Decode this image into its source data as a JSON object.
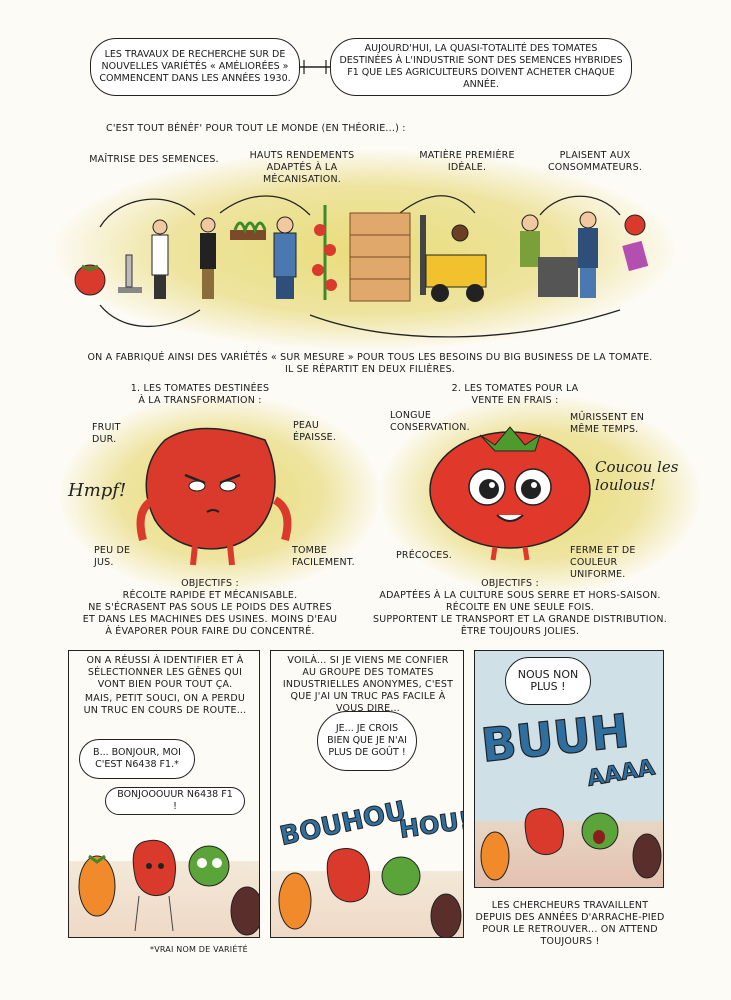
{
  "header": {
    "box_left": "LES TRAVAUX DE RECHERCHE SUR DE NOUVELLES VARIÉTÉS « AMÉLIORÉES » COMMENCENT DANS LES ANNÉES 1930.",
    "box_right": "AUJOURD'HUI, LA QUASI-TOTALITÉ DES TOMATES DESTINÉES À L'INDUSTRIE SONT DES SEMENCES HYBRIDES F1 QUE LES AGRICULTEURS DOIVENT ACHETER CHAQUE ANNÉE."
  },
  "benef_line": "C'EST TOUT BÉNÉF' POUR TOUT LE MONDE (EN THÉORIE...) :",
  "chain": {
    "label1": "MAÎTRISE DES SEMENCES.",
    "label2": "HAUTS RENDEMENTS ADAPTÉS À LA MÉCANISATION.",
    "label3": "MATIÈRE PREMIÈRE IDÉALE.",
    "label4": "PLAISENT AUX CONSOMMATEURS."
  },
  "summary_line1": "ON A FABRIQUÉ AINSI DES VARIÉTÉS « SUR MESURE » POUR TOUS LES BESOINS DU BIG BUSINESS DE LA TOMATE.",
  "summary_line2": "IL SE RÉPARTIT EN DEUX FILIÈRES.",
  "left_tomato": {
    "heading": "1. LES TOMATES DESTINÉES À LA TRANSFORMATION :",
    "fruit_dur": "FRUIT DUR.",
    "peau_epaisse": "PEAU ÉPAISSE.",
    "hmpf": "Hmpf!",
    "peu_de_jus": "PEU DE JUS.",
    "tombe": "TOMBE FACILEMENT.",
    "objectifs_title": "OBJECTIFS :",
    "objectifs_1": "RÉCOLTE RAPIDE ET MÉCANISABLE.",
    "objectifs_2": "NE S'ÉCRASENT PAS SOUS LE POIDS DES AUTRES",
    "objectifs_3": "ET DANS LES MACHINES DES USINES. MOINS D'EAU",
    "objectifs_4": "À ÉVAPORER POUR FAIRE DU CONCENTRÉ."
  },
  "right_tomato": {
    "heading": "2. LES TOMATES POUR LA VENTE EN FRAIS :",
    "longue": "LONGUE CONSERVATION.",
    "murissent": "MÛRISSENT EN MÊME TEMPS.",
    "coucou": "Coucou les loulous!",
    "precoces": "PRÉCOCES.",
    "ferme": "FERME ET DE COULEUR UNIFORME.",
    "objectifs_title": "OBJECTIFS :",
    "objectifs_1": "ADAPTÉES À LA CULTURE SOUS SERRE ET HORS-SAISON.",
    "objectifs_2": "RÉCOLTE EN UNE SEULE FOIS.",
    "objectifs_3": "SUPPORTENT LE TRANSPORT ET LA GRANDE DISTRIBUTION.",
    "objectifs_4": "ÊTRE TOUJOURS JOLIES."
  },
  "panel1": {
    "caption_1": "ON A RÉUSSI À IDENTIFIER ET À SÉLECTIONNER LES GÈNES QUI VONT BIEN POUR TOUT ÇA.",
    "caption_2": "MAIS, PETIT SOUCI, ON A PERDU UN TRUC EN COURS DE ROUTE...",
    "bubble_1": "B... BONJOUR, MOI C'EST N6438 F1.*",
    "bubble_2": "BONJOOOUUR N6438 F1 !",
    "footnote": "*VRAI NOM DE VARIÉTÉ"
  },
  "panel2": {
    "caption": "VOILÀ... SI JE VIENS ME CONFIER AU GROUPE DES TOMATES INDUSTRIELLES ANONYMES, C'EST QUE J'AI UN TRUC PAS FACILE À VOUS DIRE...",
    "bubble": "JE... JE CROIS BIEN QUE JE N'AI PLUS DE GOÛT !",
    "sfx_1": "BOUHOU",
    "sfx_2": "HOU!"
  },
  "panel3": {
    "bubble": "NOUS NON PLUS !",
    "sfx_1": "BUUH",
    "sfx_2": "AAAA",
    "caption": "LES CHERCHEURS TRAVAILLENT DEPUIS DES ANNÉES D'ARRACHE-PIED POUR LE RETROUVER... ON ATTEND TOUJOURS !"
  },
  "colors": {
    "tomato_red": "#d93a2c",
    "green_tomato": "#5aa43a",
    "yellow_glow": "#e8dd7a",
    "panel_bg_blue": "#cfe0e6",
    "sfx_blue": "#2f6fa0"
  }
}
